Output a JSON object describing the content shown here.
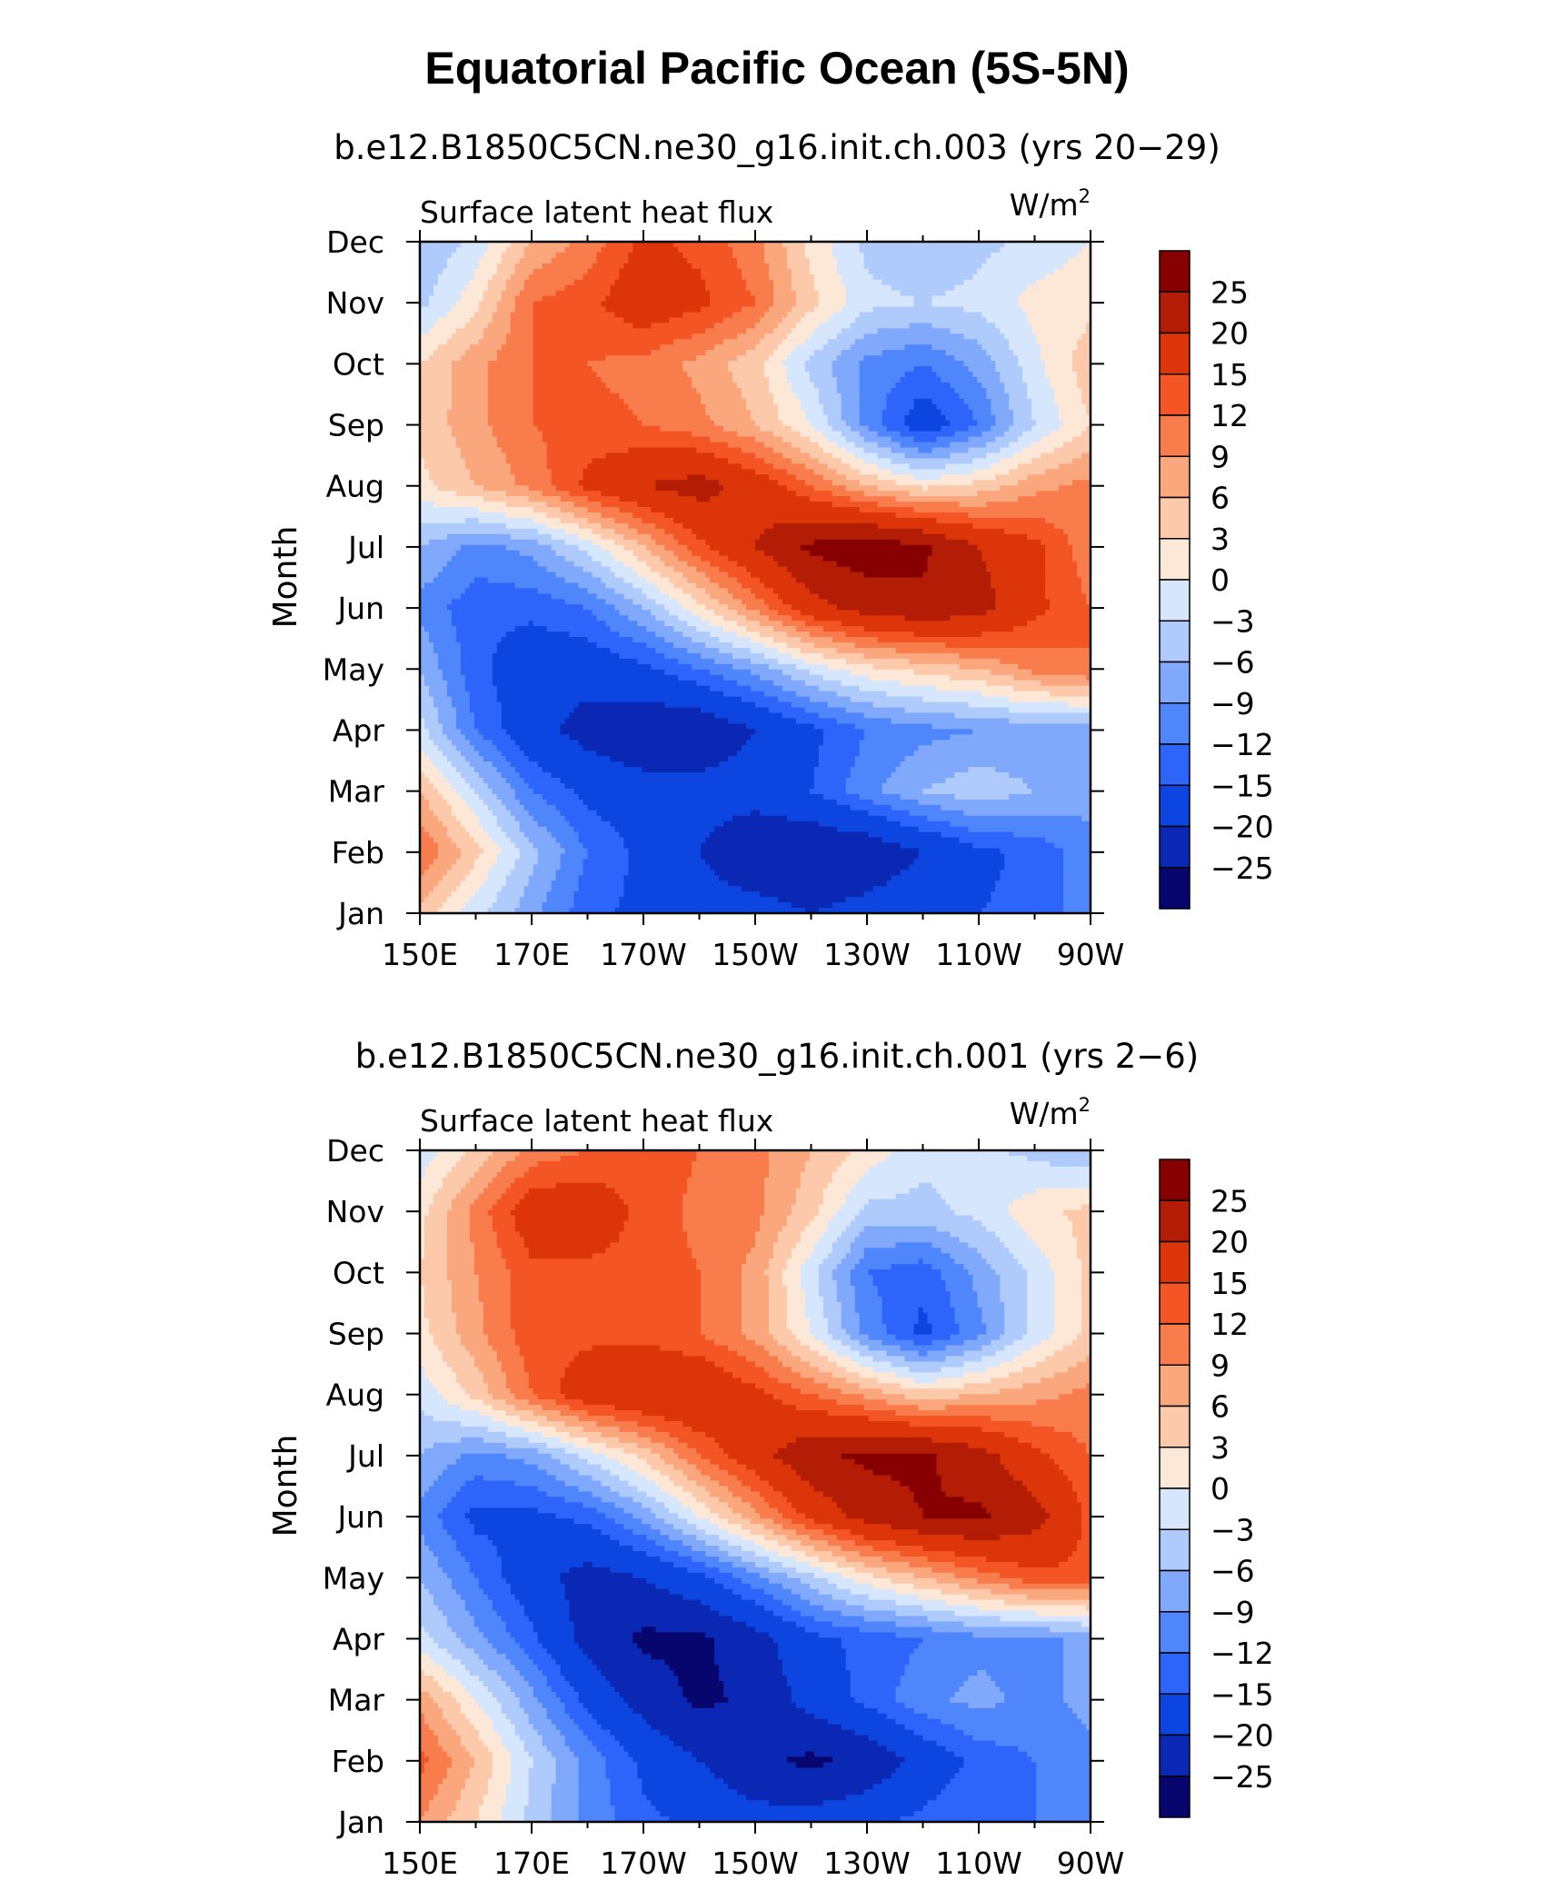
{
  "title": "Equatorial Pacific Ocean (5S-5N)",
  "chart_data": [
    {
      "type": "heatmap",
      "subtitle": "b.e12.B1850C5CN.ne30_g16.init.ch.003 (yrs 20−29)",
      "panel_label": "Surface latent heat flux",
      "units_base": "W/m",
      "units_exp": "2",
      "ylabel": "Month",
      "x_tick_labels": [
        "150E",
        "170E",
        "170W",
        "150W",
        "130W",
        "110W",
        "90W"
      ],
      "y_tick_labels": [
        "Jan",
        "Feb",
        "Mar",
        "Apr",
        "May",
        "Jun",
        "Jul",
        "Aug",
        "Sep",
        "Oct",
        "Nov",
        "Dec"
      ],
      "xlim_deg_east": [
        150,
        270
      ],
      "levels": [
        -25,
        -20,
        -15,
        -12,
        -9,
        -6,
        -3,
        0,
        3,
        6,
        9,
        12,
        15,
        20,
        25
      ],
      "colorbar_labels": [
        "25",
        "20",
        "15",
        "12",
        "9",
        "6",
        "3",
        "0",
        "−3",
        "−6",
        "−9",
        "−12",
        "−15",
        "−20",
        "−25"
      ],
      "z_grid_lon_deg_east": [
        150,
        160,
        170,
        180,
        190,
        200,
        210,
        220,
        230,
        240,
        250,
        260,
        270
      ],
      "z_grid_rows_jan_to_dec": [
        [
          5,
          -2,
          -8,
          -14,
          -16,
          -18,
          -18,
          -20,
          -18,
          -16,
          -15,
          -14,
          -10
        ],
        [
          12,
          4,
          -5,
          -12,
          -16,
          -20,
          -24,
          -25,
          -24,
          -20,
          -16,
          -14,
          -10
        ],
        [
          6,
          -3,
          -12,
          -16,
          -18,
          -18,
          -18,
          -15,
          -10,
          -6,
          -4,
          -6,
          -8
        ],
        [
          -2,
          -12,
          -18,
          -22,
          -24,
          -24,
          -20,
          -16,
          -12,
          -10,
          -9,
          -8,
          -8
        ],
        [
          -6,
          -14,
          -18,
          -18,
          -16,
          -12,
          -8,
          -2,
          2,
          4,
          6,
          10,
          12
        ],
        [
          -10,
          -14,
          -14,
          -12,
          -6,
          2,
          10,
          18,
          22,
          24,
          22,
          16,
          12
        ],
        [
          -6,
          -10,
          -8,
          -2,
          6,
          14,
          20,
          26,
          28,
          26,
          20,
          16,
          10
        ],
        [
          2,
          6,
          10,
          16,
          20,
          22,
          18,
          12,
          6,
          2,
          4,
          8,
          10
        ],
        [
          4,
          8,
          12,
          13,
          12,
          10,
          6,
          0,
          -10,
          -18,
          -12,
          -3,
          3
        ],
        [
          3,
          8,
          12,
          12,
          11,
          8,
          4,
          -4,
          -10,
          -12,
          -8,
          -1,
          5
        ],
        [
          -4,
          2,
          12,
          14,
          18,
          16,
          12,
          4,
          -2,
          -3,
          -2,
          1,
          2
        ],
        [
          -6,
          -2,
          6,
          10,
          16,
          14,
          10,
          2,
          -4,
          -6,
          -4,
          -2,
          0
        ]
      ]
    },
    {
      "type": "heatmap",
      "subtitle": "b.e12.B1850C5CN.ne30_g16.init.ch.001 (yrs 2−6)",
      "panel_label": "Surface latent heat flux",
      "units_base": "W/m",
      "units_exp": "2",
      "ylabel": "Month",
      "x_tick_labels": [
        "150E",
        "170E",
        "170W",
        "150W",
        "130W",
        "110W",
        "90W"
      ],
      "y_tick_labels": [
        "Jan",
        "Feb",
        "Mar",
        "Apr",
        "May",
        "Jun",
        "Jul",
        "Aug",
        "Sep",
        "Oct",
        "Nov",
        "Dec"
      ],
      "xlim_deg_east": [
        150,
        270
      ],
      "levels": [
        -25,
        -20,
        -15,
        -12,
        -9,
        -6,
        -3,
        0,
        3,
        6,
        9,
        12,
        15,
        20,
        25
      ],
      "colorbar_labels": [
        "25",
        "20",
        "15",
        "12",
        "9",
        "6",
        "3",
        "0",
        "−3",
        "−6",
        "−9",
        "−12",
        "−15",
        "−20",
        "−25"
      ],
      "z_grid_lon_deg_east": [
        150,
        160,
        170,
        180,
        190,
        200,
        210,
        220,
        230,
        240,
        250,
        260,
        270
      ],
      "z_grid_rows_jan_to_dec": [
        [
          9,
          3,
          -4,
          -10,
          -14,
          -16,
          -18,
          -18,
          -16,
          -14,
          -12,
          -12,
          -10
        ],
        [
          13,
          6,
          -3,
          -10,
          -16,
          -20,
          -24,
          -26,
          -24,
          -18,
          -14,
          -12,
          -10
        ],
        [
          8,
          0,
          -8,
          -16,
          -22,
          -26,
          -24,
          -18,
          -14,
          -10,
          -8,
          -10,
          -8
        ],
        [
          -2,
          -8,
          -14,
          -22,
          -26,
          -26,
          -22,
          -16,
          -14,
          -12,
          -10,
          -10,
          -8
        ],
        [
          -6,
          -12,
          -18,
          -22,
          -20,
          -16,
          -10,
          -4,
          2,
          6,
          10,
          14,
          14
        ],
        [
          -10,
          -16,
          -16,
          -14,
          -8,
          0,
          8,
          16,
          22,
          25,
          26,
          22,
          14
        ],
        [
          -6,
          -10,
          -8,
          -2,
          4,
          12,
          18,
          24,
          26,
          26,
          22,
          16,
          12
        ],
        [
          -2,
          4,
          12,
          18,
          20,
          20,
          16,
          12,
          8,
          4,
          6,
          8,
          10
        ],
        [
          2,
          8,
          14,
          14,
          14,
          12,
          8,
          0,
          -10,
          -16,
          -10,
          -2,
          4
        ],
        [
          3,
          9,
          14,
          14,
          14,
          12,
          8,
          -2,
          -12,
          -14,
          -8,
          -2,
          4
        ],
        [
          2,
          10,
          18,
          18,
          14,
          11,
          10,
          4,
          -4,
          -4,
          -2,
          2,
          4
        ],
        [
          -2,
          4,
          10,
          12,
          14,
          12,
          10,
          6,
          2,
          -2,
          -2,
          -4,
          -6
        ]
      ]
    }
  ]
}
